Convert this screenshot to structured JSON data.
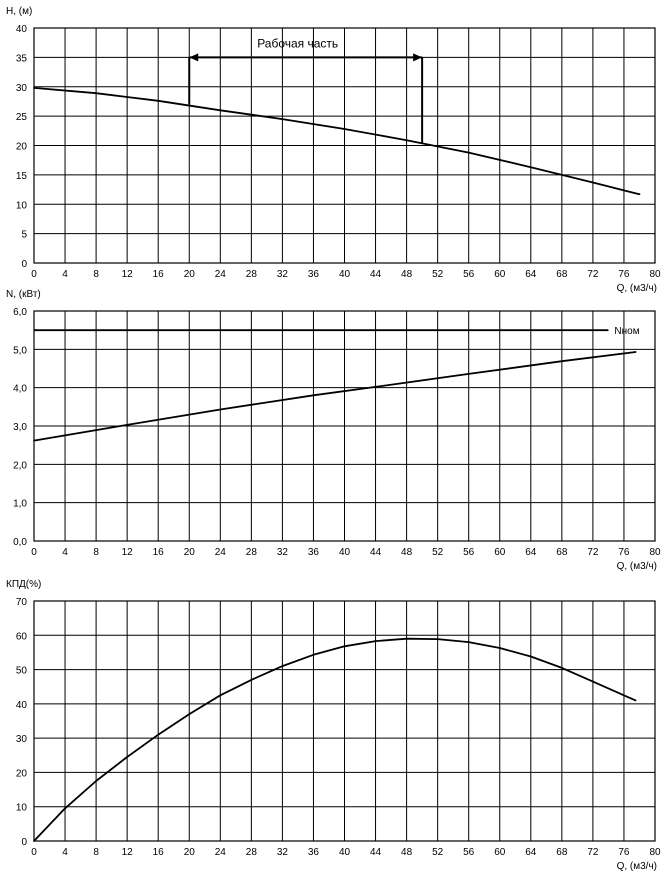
{
  "chart_data": [
    {
      "type": "line",
      "ylabel": "H, (м)",
      "xlabel": "Q, (м3/ч)",
      "xlim": [
        0,
        80
      ],
      "ylim": [
        0,
        40
      ],
      "xticks": [
        "0",
        "4",
        "8",
        "12",
        "16",
        "20",
        "24",
        "28",
        "32",
        "36",
        "40",
        "44",
        "48",
        "52",
        "56",
        "60",
        "64",
        "68",
        "72",
        "76",
        "80"
      ],
      "yticks": [
        "0",
        "5",
        "10",
        "15",
        "20",
        "25",
        "30",
        "35",
        "40"
      ],
      "grid": true,
      "series": [
        {
          "x": [
            0,
            8,
            16,
            24,
            32,
            40,
            48,
            56,
            64,
            72,
            78
          ],
          "y": [
            29.8,
            28.9,
            27.6,
            26.0,
            24.5,
            22.8,
            20.9,
            18.8,
            16.3,
            13.7,
            11.7
          ]
        }
      ],
      "annotation": {
        "text": "Рабочая часть",
        "x_from": 20,
        "x_to": 50,
        "y_level": 35,
        "y_left_curve": 27.0,
        "y_right_curve": 20.3
      }
    },
    {
      "type": "line",
      "ylabel": "N, (кВт)",
      "xlabel": "Q, (м3/ч)",
      "xlim": [
        0,
        80
      ],
      "ylim": [
        0,
        6
      ],
      "xticks": [
        "0",
        "4",
        "8",
        "12",
        "16",
        "20",
        "24",
        "28",
        "32",
        "36",
        "40",
        "44",
        "48",
        "52",
        "56",
        "60",
        "64",
        "68",
        "72",
        "76",
        "80"
      ],
      "yticks": [
        "0,0",
        "1,0",
        "2,0",
        "3,0",
        "4,0",
        "5,0",
        "6,0"
      ],
      "grid": true,
      "series": [
        {
          "x": [
            0,
            12,
            24,
            36,
            44,
            56,
            68,
            77.5
          ],
          "y": [
            2.62,
            3.03,
            3.43,
            3.8,
            4.02,
            4.36,
            4.69,
            4.93
          ]
        }
      ],
      "reference_line": {
        "label": "Nном",
        "y": 5.5,
        "x_from": 0,
        "x_to": 74
      }
    },
    {
      "type": "line",
      "ylabel": "КПД(%)",
      "xlabel": "Q, (м3/ч)",
      "xlim": [
        0,
        80
      ],
      "ylim": [
        0,
        70
      ],
      "xticks": [
        "0",
        "4",
        "8",
        "12",
        "16",
        "20",
        "24",
        "28",
        "32",
        "36",
        "40",
        "44",
        "48",
        "52",
        "56",
        "60",
        "64",
        "68",
        "72",
        "76",
        "80"
      ],
      "yticks": [
        "0",
        "10",
        "20",
        "30",
        "40",
        "50",
        "60",
        "70"
      ],
      "grid": true,
      "series": [
        {
          "x": [
            0,
            4,
            8,
            12,
            16,
            20,
            24,
            28,
            32,
            36,
            40,
            44,
            48,
            52,
            56,
            60,
            64,
            68,
            72,
            76,
            77.5
          ],
          "y": [
            0,
            9.5,
            17.5,
            24.5,
            31.0,
            37.0,
            42.5,
            47.0,
            51.0,
            54.3,
            56.8,
            58.3,
            59.0,
            58.9,
            58.0,
            56.3,
            53.8,
            50.5,
            46.5,
            42.5,
            41.0
          ]
        }
      ]
    }
  ]
}
